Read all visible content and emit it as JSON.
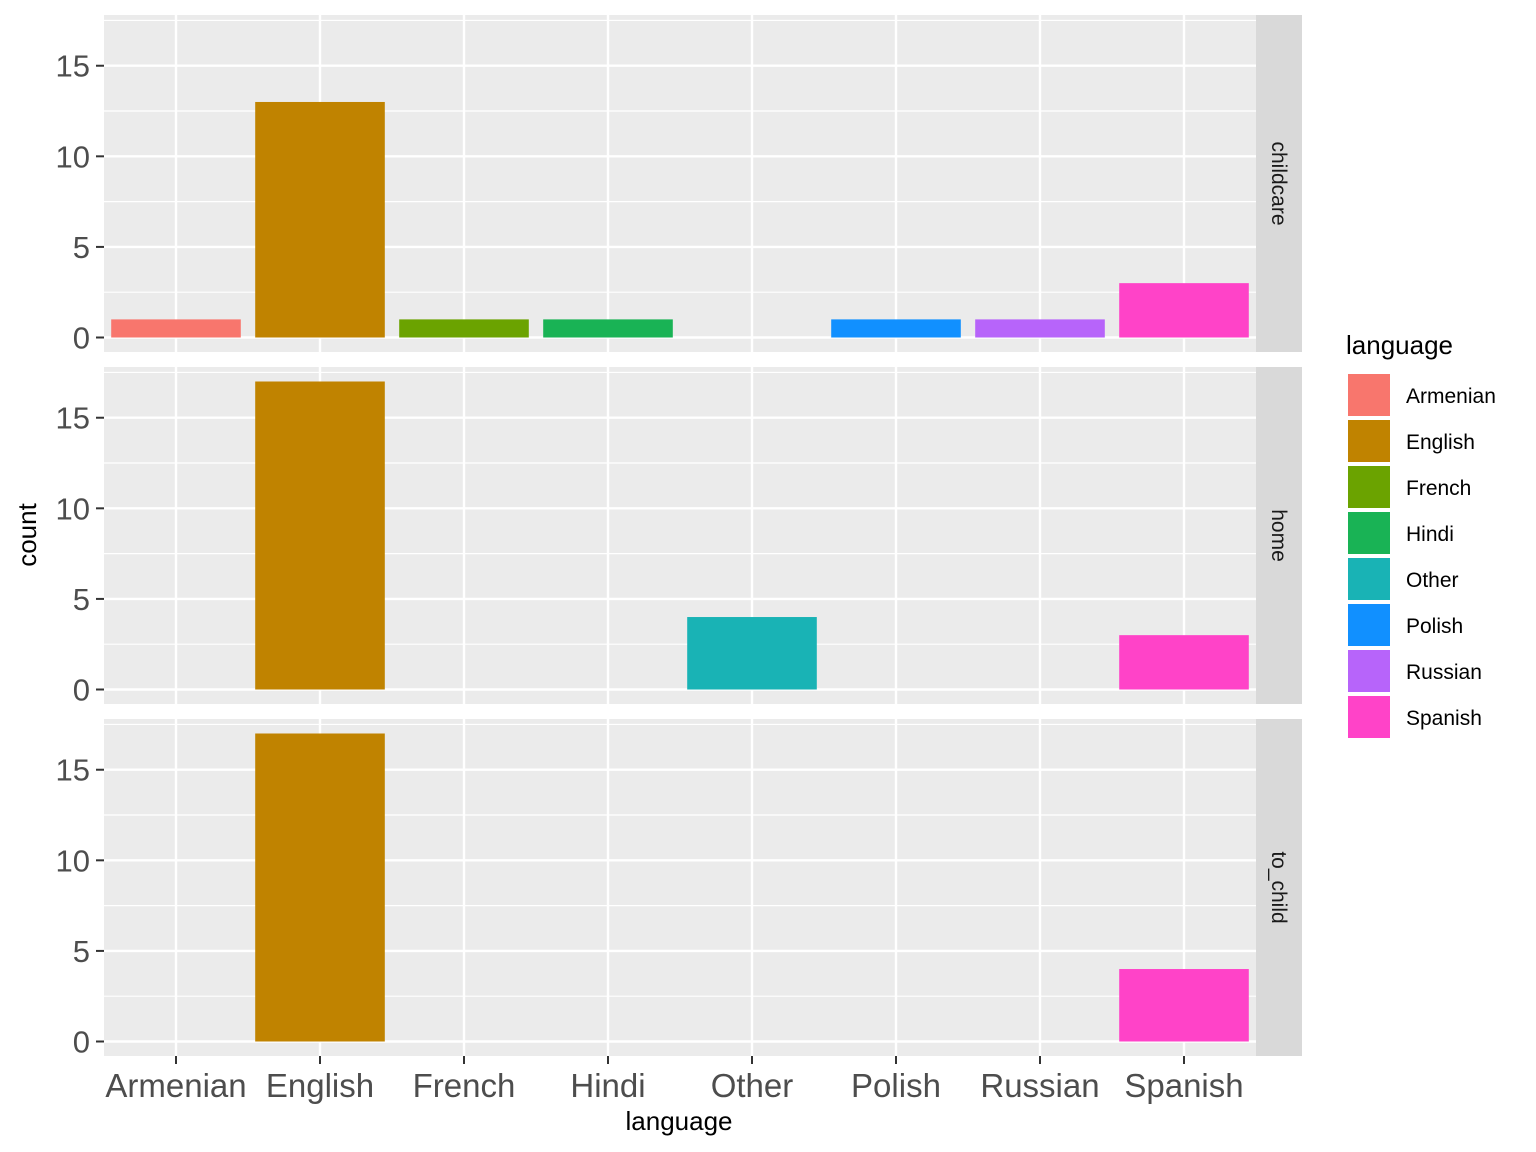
{
  "chart_data": {
    "type": "bar",
    "subtype": "faceted",
    "xlabel": "language",
    "ylabel": "count",
    "categories": [
      "Armenian",
      "English",
      "French",
      "Hindi",
      "Other",
      "Polish",
      "Russian",
      "Spanish"
    ],
    "ylim": [
      -0.8,
      17.8
    ],
    "yticks": [
      0,
      5,
      10,
      15
    ],
    "grid": true,
    "legend_position": "right",
    "legend": {
      "title": "language",
      "entries": [
        {
          "label": "Armenian",
          "color": "#F8766D"
        },
        {
          "label": "English",
          "color": "#C08300"
        },
        {
          "label": "French",
          "color": "#6BA300"
        },
        {
          "label": "Hindi",
          "color": "#19B355"
        },
        {
          "label": "Other",
          "color": "#19B3B5"
        },
        {
          "label": "Polish",
          "color": "#1190FF"
        },
        {
          "label": "Russian",
          "color": "#B764FA"
        },
        {
          "label": "Spanish",
          "color": "#FF43C8"
        }
      ]
    },
    "facets": [
      {
        "label": "childcare",
        "values": [
          1,
          13,
          1,
          1,
          0,
          1,
          1,
          3
        ]
      },
      {
        "label": "home",
        "values": [
          0,
          17,
          0,
          0,
          4,
          0,
          0,
          3
        ]
      },
      {
        "label": "to_child",
        "values": [
          0,
          17,
          0,
          0,
          0,
          0,
          0,
          4
        ]
      }
    ]
  }
}
